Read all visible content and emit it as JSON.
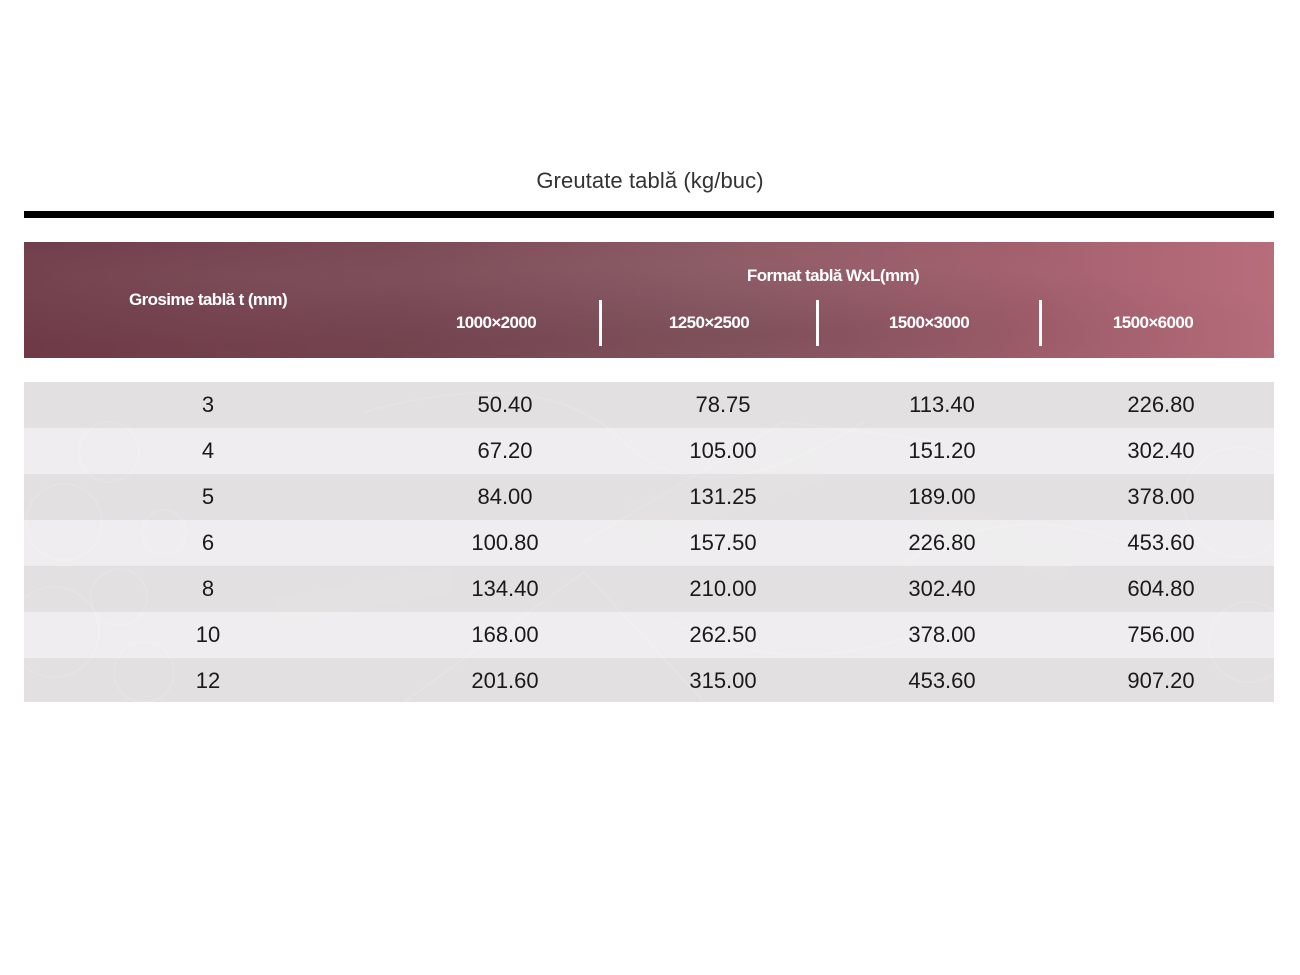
{
  "page": {
    "title": "Greutate tablă (kg/buc)"
  },
  "table": {
    "thickness_header": "Grosime tablă t (mm)",
    "format_header": "Format tablă WxL(mm)",
    "formats": [
      "1000×2000",
      "1250×2500",
      "1500×3000",
      "1500×6000"
    ],
    "rows": [
      {
        "t": "3",
        "values": [
          "50.40",
          "78.75",
          "113.40",
          "226.80"
        ]
      },
      {
        "t": "4",
        "values": [
          "67.20",
          "105.00",
          "151.20",
          "302.40"
        ]
      },
      {
        "t": "5",
        "values": [
          "84.00",
          "131.25",
          "189.00",
          "378.00"
        ]
      },
      {
        "t": "6",
        "values": [
          "100.80",
          "157.50",
          "226.80",
          "453.60"
        ]
      },
      {
        "t": "8",
        "values": [
          "134.40",
          "210.00",
          "302.40",
          "604.80"
        ]
      },
      {
        "t": "10",
        "values": [
          "168.00",
          "262.50",
          "378.00",
          "756.00"
        ]
      },
      {
        "t": "12",
        "values": [
          "201.60",
          "315.00",
          "453.60",
          "907.20"
        ]
      }
    ]
  },
  "colors": {
    "header_start": "#6e3a47",
    "header_end": "#b86d7b",
    "row_odd": "#e0dedf",
    "row_even": "#f0eeef",
    "title_rule": "#000000"
  }
}
